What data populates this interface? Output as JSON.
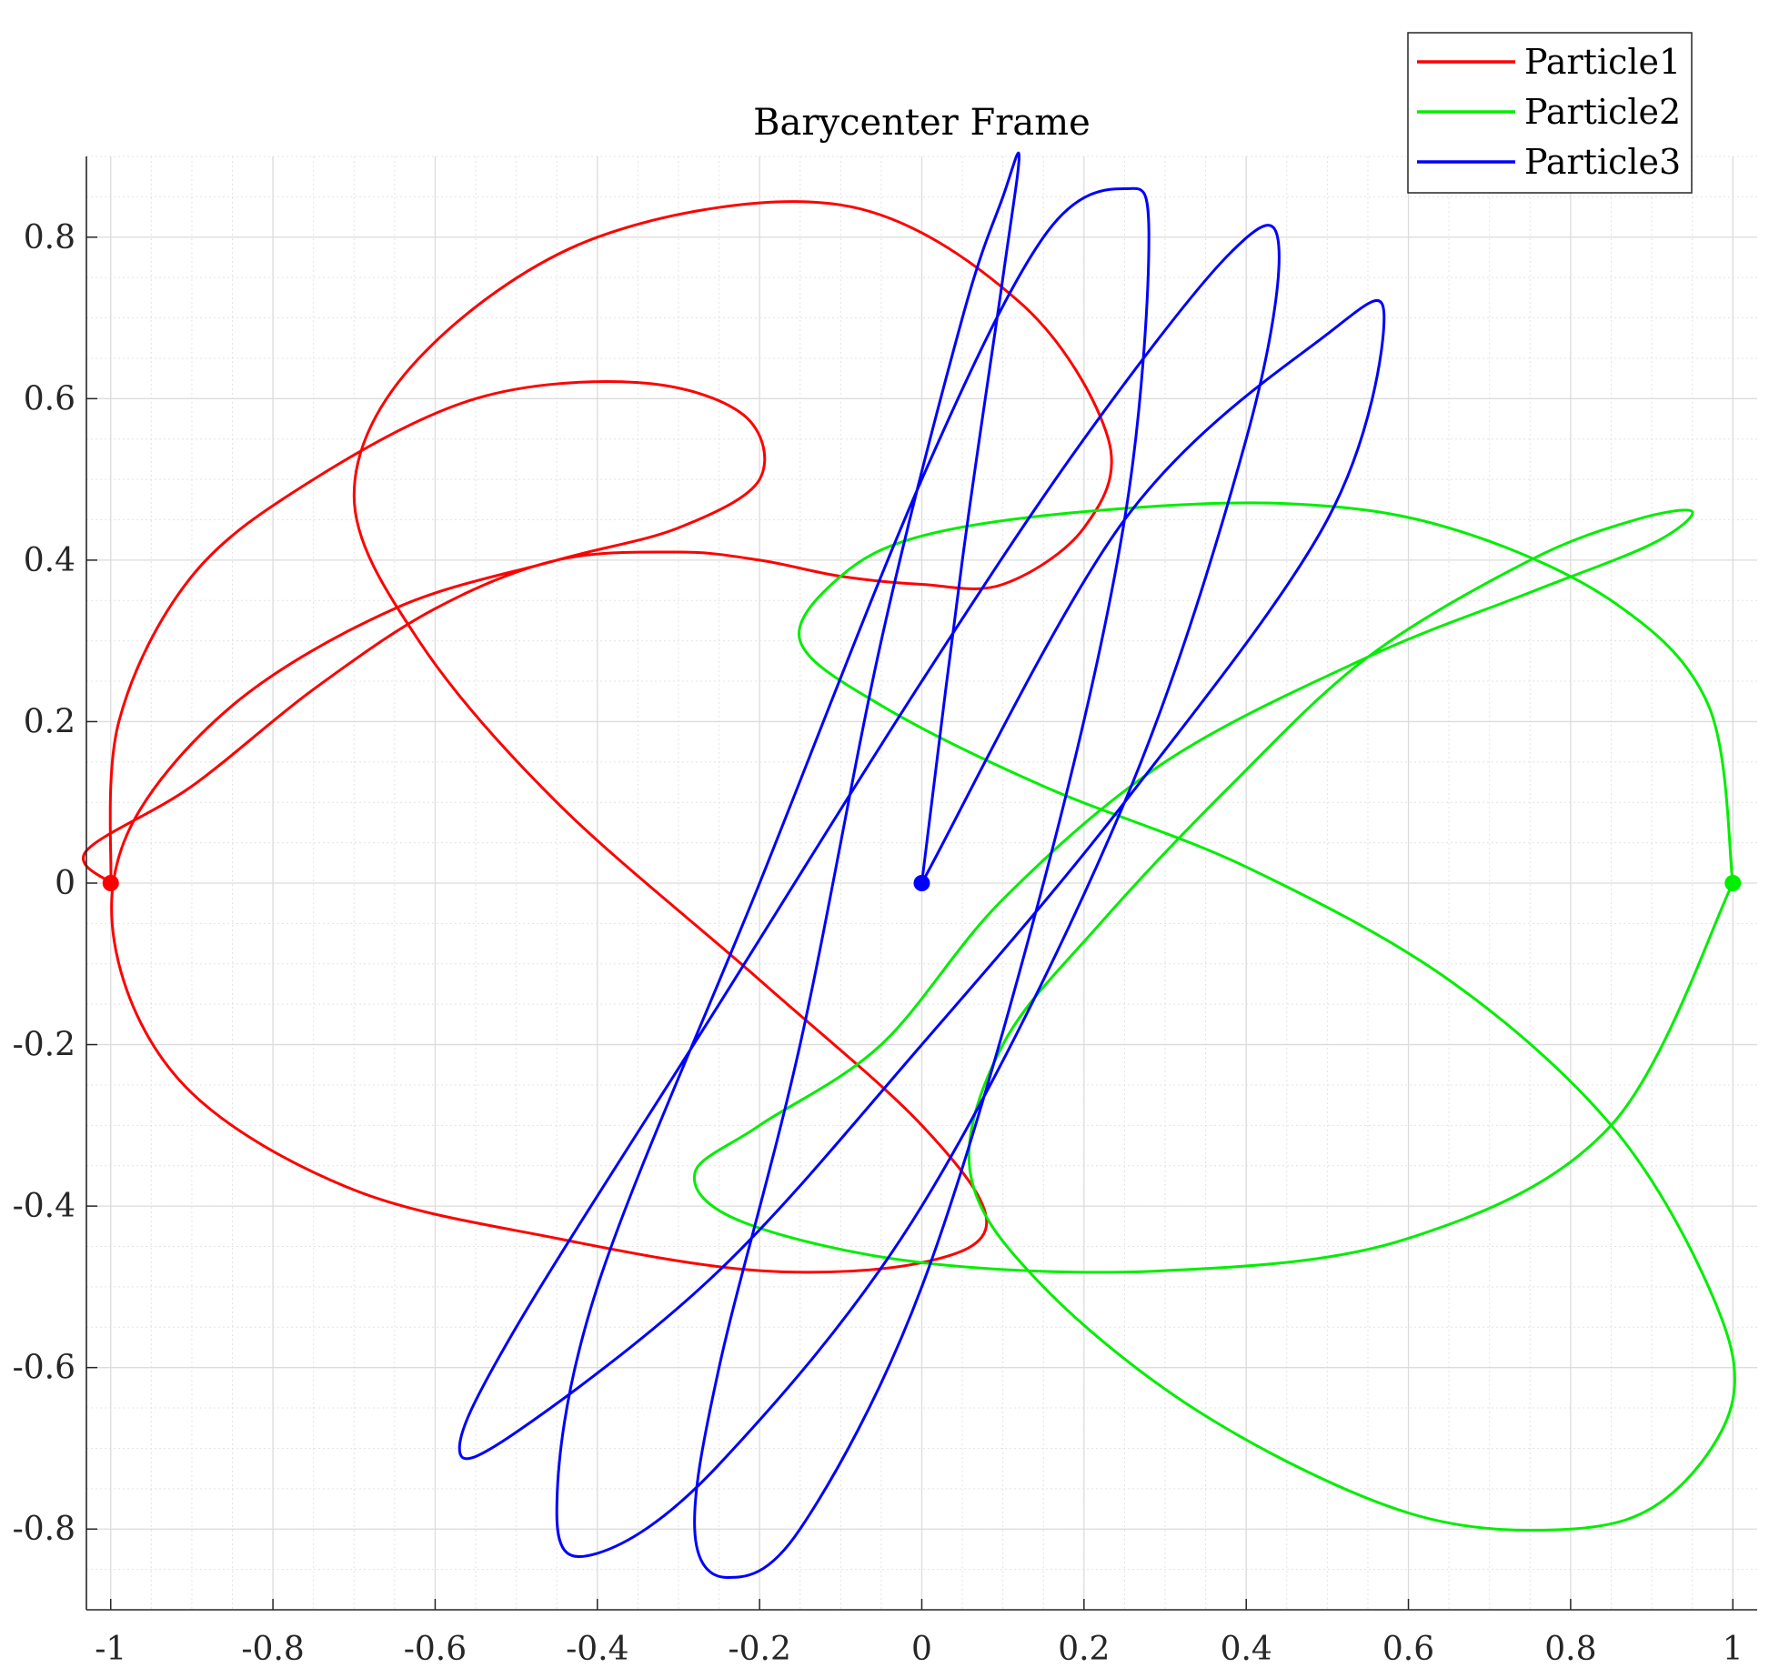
{
  "chart_data": {
    "type": "line",
    "title": "Barycenter Frame",
    "xlabel": "",
    "ylabel": "",
    "xlim": [
      -1.03,
      1.03
    ],
    "ylim": [
      -0.9,
      0.9
    ],
    "xticks": [
      -1,
      -0.8,
      -0.6,
      -0.4,
      -0.2,
      0,
      0.2,
      0.4,
      0.6,
      0.8,
      1
    ],
    "xtick_labels": [
      "-1",
      "-0.8",
      "-0.6",
      "-0.4",
      "-0.2",
      "0",
      "0.2",
      "0.4",
      "0.6",
      "0.8",
      "1"
    ],
    "yticks": [
      -0.8,
      -0.6,
      -0.4,
      -0.2,
      0,
      0.2,
      0.4,
      0.6,
      0.8
    ],
    "ytick_labels": [
      "-0.8",
      "-0.6",
      "-0.4",
      "-0.2",
      "0",
      "0.2",
      "0.4",
      "0.6",
      "0.8"
    ],
    "grid": true,
    "minor_grid": true,
    "legend_position": "top-right",
    "series": [
      {
        "name": "Particle1",
        "color": "#ff0000",
        "start": [
          -1,
          0
        ],
        "x": [
          -1,
          -0.99,
          -0.9,
          -0.75,
          -0.55,
          -0.35,
          -0.22,
          -0.2,
          -0.3,
          -0.45,
          -0.65,
          -0.85,
          -0.98,
          -0.99,
          -0.9,
          -0.7,
          -0.45,
          -0.2,
          0,
          0.08,
          0,
          -0.2,
          -0.45,
          -0.62,
          -0.7,
          -0.62,
          -0.4,
          -0.1,
          0.12,
          0.23,
          0.2,
          0.1,
          0,
          -0.1,
          -0.2,
          -0.3,
          -0.45,
          -0.6,
          -0.75,
          -0.9,
          -1.03,
          -1
        ],
        "y": [
          0,
          0.2,
          0.38,
          0.5,
          0.6,
          0.62,
          0.58,
          0.5,
          0.44,
          0.4,
          0.34,
          0.22,
          0.06,
          -0.1,
          -0.26,
          -0.38,
          -0.44,
          -0.48,
          -0.47,
          -0.42,
          -0.3,
          -0.12,
          0.1,
          0.3,
          0.48,
          0.65,
          0.8,
          0.84,
          0.72,
          0.55,
          0.44,
          0.37,
          0.37,
          0.38,
          0.4,
          0.41,
          0.4,
          0.34,
          0.24,
          0.12,
          0.04,
          0
        ]
      },
      {
        "name": "Particle2",
        "color": "#00ee00",
        "start": [
          1,
          0
        ],
        "x": [
          1,
          0.97,
          0.85,
          0.65,
          0.45,
          0.2,
          0,
          -0.1,
          -0.15,
          -0.05,
          0.15,
          0.4,
          0.65,
          0.85,
          0.97,
          1,
          0.92,
          0.8,
          0.6,
          0.35,
          0.15,
          0.06,
          0.1,
          0.22,
          0.38,
          0.55,
          0.75,
          0.88,
          0.95,
          0.9,
          0.75,
          0.55,
          0.3,
          0.1,
          -0.05,
          -0.2,
          -0.28,
          -0.22,
          0,
          0.3,
          0.6,
          0.85,
          1
        ],
        "y": [
          0,
          0.22,
          0.35,
          0.44,
          0.47,
          0.46,
          0.43,
          0.38,
          0.3,
          0.22,
          0.12,
          0.02,
          -0.12,
          -0.3,
          -0.5,
          -0.64,
          -0.76,
          -0.8,
          -0.78,
          -0.66,
          -0.5,
          -0.36,
          -0.2,
          -0.05,
          0.12,
          0.28,
          0.4,
          0.45,
          0.46,
          0.42,
          0.36,
          0.28,
          0.15,
          -0.02,
          -0.2,
          -0.3,
          -0.36,
          -0.42,
          -0.47,
          -0.48,
          -0.44,
          -0.3,
          0
        ]
      },
      {
        "name": "Particle3",
        "color": "#0000ff",
        "start": [
          0,
          0
        ],
        "x": [
          0,
          0.05,
          0.1,
          0.12,
          0.1,
          0.05,
          -0.05,
          -0.15,
          -0.25,
          -0.28,
          -0.24,
          -0.15,
          0,
          0.15,
          0.25,
          0.28,
          0.25,
          0.15,
          0,
          -0.2,
          -0.4,
          -0.45,
          -0.4,
          -0.25,
          0,
          0.25,
          0.4,
          0.44,
          0.38,
          0.2,
          0,
          -0.25,
          -0.5,
          -0.57,
          -0.5,
          -0.25,
          0,
          0.25,
          0.5,
          0.57,
          0.5,
          0.25,
          0
        ],
        "y": [
          0,
          0.4,
          0.75,
          0.9,
          0.85,
          0.7,
          0.3,
          -0.2,
          -0.6,
          -0.8,
          -0.86,
          -0.8,
          -0.5,
          0,
          0.45,
          0.8,
          0.86,
          0.8,
          0.5,
          0,
          -0.5,
          -0.78,
          -0.83,
          -0.72,
          -0.4,
          0.1,
          0.55,
          0.79,
          0.78,
          0.55,
          0.25,
          -0.15,
          -0.55,
          -0.7,
          -0.68,
          -0.48,
          -0.2,
          0.1,
          0.45,
          0.7,
          0.68,
          0.45,
          0
        ]
      }
    ]
  }
}
